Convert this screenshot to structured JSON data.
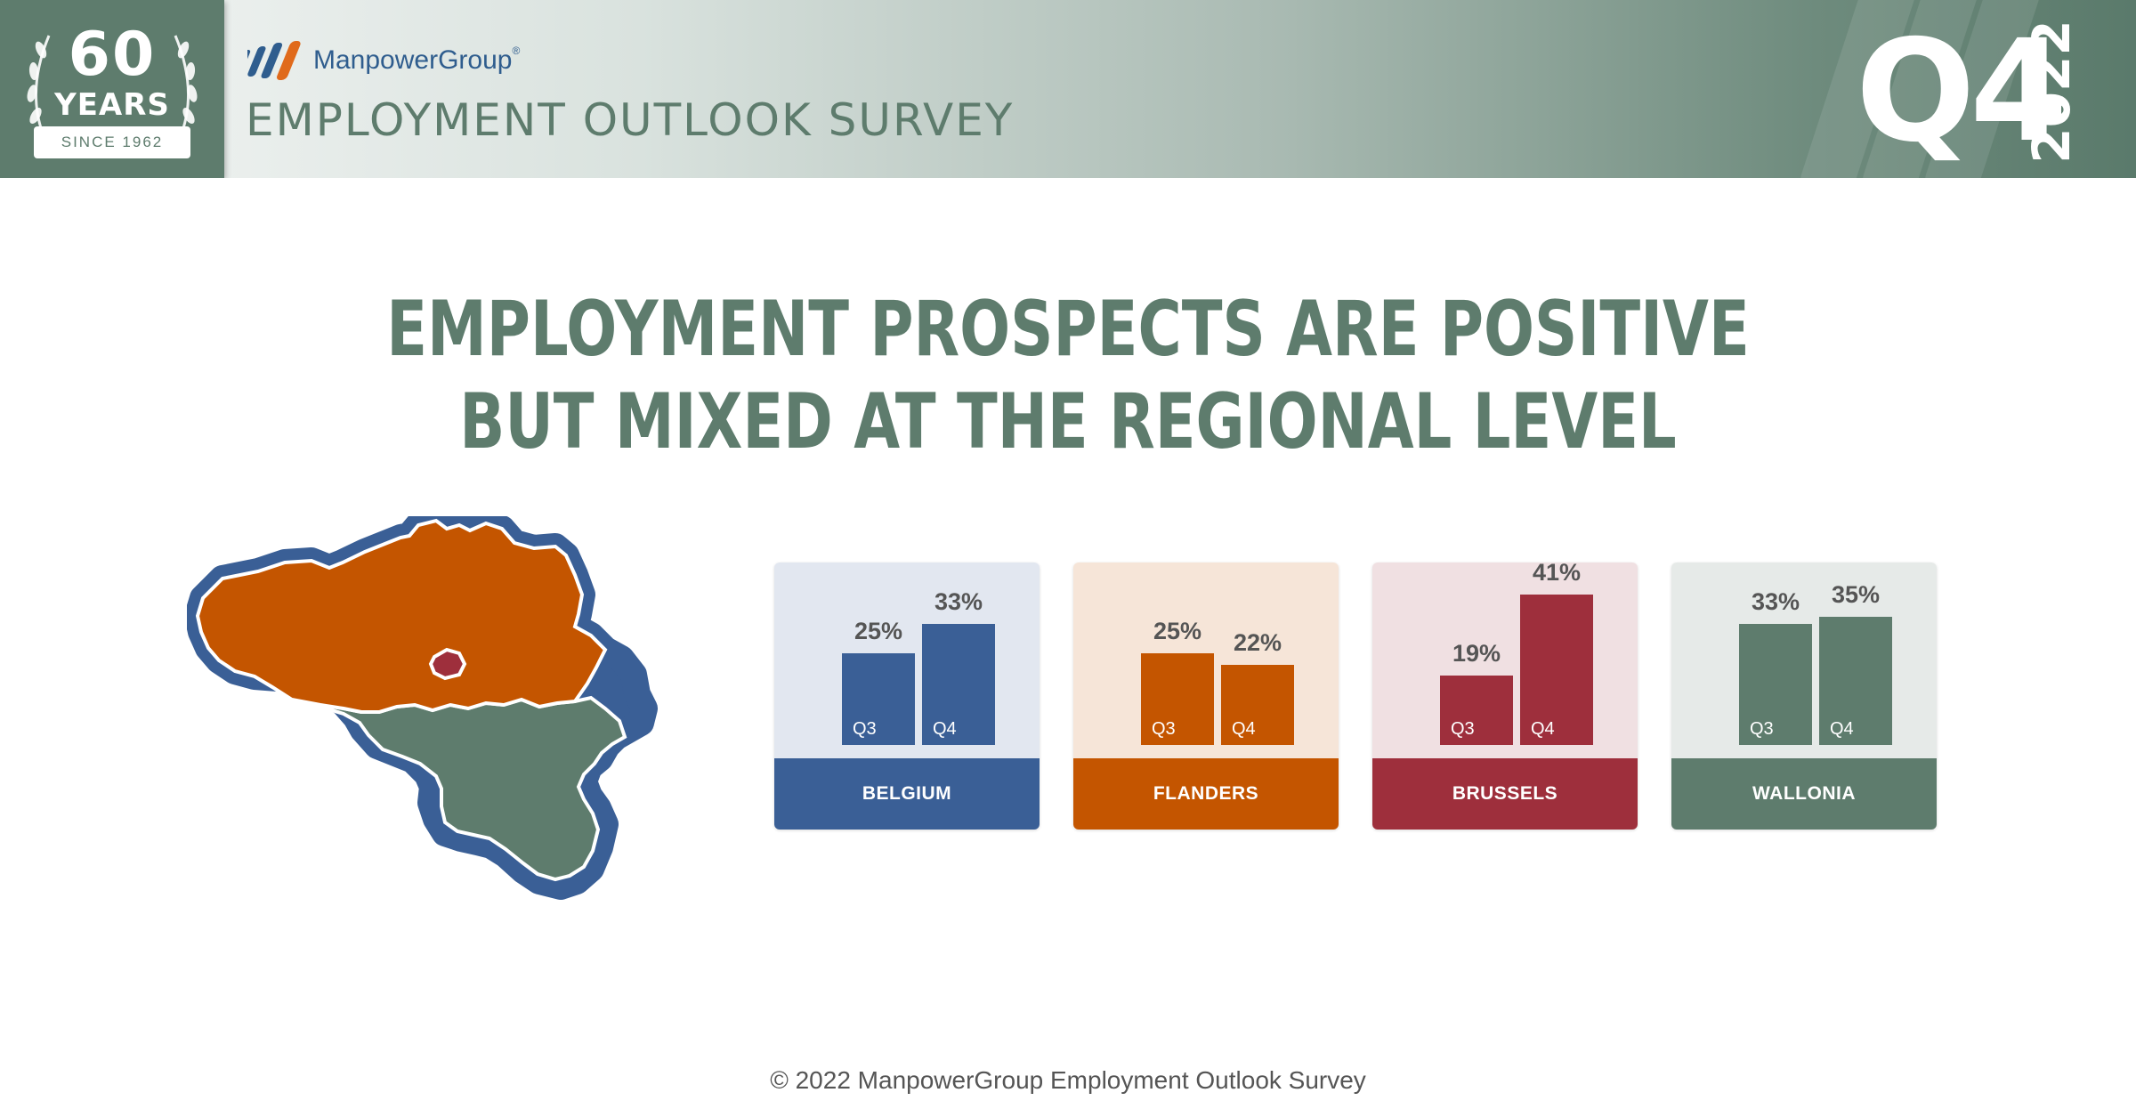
{
  "header": {
    "badge_number": "60",
    "badge_years": "YEARS",
    "badge_since": "SINCE 1962",
    "brand_name": "ManpowerGroup",
    "brand_mark": "®",
    "survey_title": "EMPLOYMENT OUTLOOK SURVEY",
    "quarter": "Q4",
    "year": "2022"
  },
  "headline": {
    "line1": "EMPLOYMENT PROSPECTS ARE POSITIVE",
    "line2": "BUT MIXED AT THE REGIONAL LEVEL"
  },
  "colors": {
    "belgium": "#3a5f96",
    "flanders": "#c45500",
    "brussels": "#9e2f3c",
    "wallonia": "#5e7c6d",
    "map_border": "#3a5f96"
  },
  "icons": [
    "laurel-icon",
    "search-people-icon",
    "manpower-logo-icon",
    "belgium-map-icon"
  ],
  "chart_data": {
    "type": "bar",
    "categories": [
      "Q3",
      "Q4"
    ],
    "panels": [
      {
        "region": "BELGIUM",
        "color": "#3a5f96",
        "bg": "#e2e7f0",
        "values": [
          25,
          33
        ],
        "labels": [
          "25%",
          "33%"
        ]
      },
      {
        "region": "FLANDERS",
        "color": "#c45500",
        "bg": "#f6e5d8",
        "values": [
          25,
          22
        ],
        "labels": [
          "25%",
          "22%"
        ]
      },
      {
        "region": "BRUSSELS",
        "color": "#9e2f3c",
        "bg": "#f0e0e2",
        "values": [
          19,
          41
        ],
        "labels": [
          "19%",
          "41%"
        ]
      },
      {
        "region": "WALLONIA",
        "color": "#5e7c6d",
        "bg": "#e6eae8",
        "values": [
          33,
          35
        ],
        "labels": [
          "33%",
          "35%"
        ]
      }
    ],
    "ylim": [
      0,
      45
    ]
  },
  "footer": {
    "copyright": "© 2022 ManpowerGroup Employment Outlook Survey"
  }
}
